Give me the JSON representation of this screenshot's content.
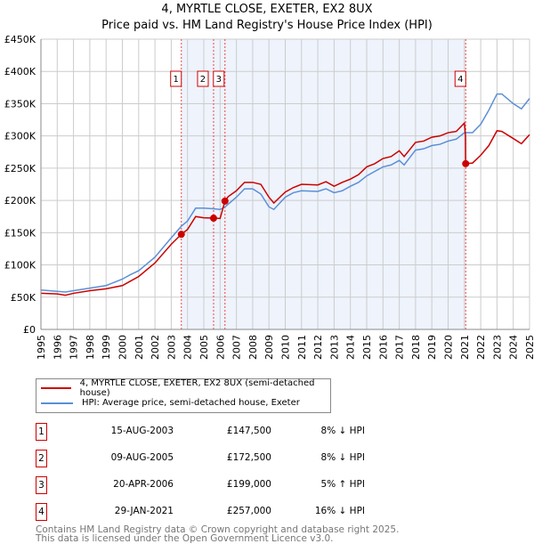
{
  "chart_data": {
    "type": "line",
    "title": "4, MYRTLE CLOSE, EXETER, EX2 8UX",
    "subtitle": "Price paid vs. HM Land Registry's House Price Index (HPI)",
    "xlim": [
      1995,
      2025
    ],
    "ylim": [
      0,
      450000
    ],
    "x_ticks": [
      "1995",
      "1996",
      "1997",
      "1998",
      "1999",
      "2000",
      "2001",
      "2002",
      "2003",
      "2004",
      "2005",
      "2006",
      "2007",
      "2008",
      "2009",
      "2010",
      "2011",
      "2012",
      "2013",
      "2014",
      "2015",
      "2016",
      "2017",
      "2018",
      "2019",
      "2020",
      "2021",
      "2022",
      "2023",
      "2024",
      "2025"
    ],
    "y_ticks": [
      "£0",
      "£50K",
      "£100K",
      "£150K",
      "£200K",
      "£250K",
      "£300K",
      "£350K",
      "£400K",
      "£450K"
    ],
    "grid": true,
    "shaded_range": [
      2003.62,
      2021.08
    ],
    "series": [
      {
        "name": "4, MYRTLE CLOSE, EXETER, EX2 8UX (semi-detached house)",
        "color": "#cc0000",
        "x": [
          1995,
          1996,
          1996.5,
          1997,
          1998,
          1999,
          2000,
          2000.5,
          2001,
          2002,
          2003,
          2003.62,
          2004,
          2004.5,
          2005,
          2005.6,
          2006,
          2006.3,
          2006.5,
          2007,
          2007.5,
          2008,
          2008.5,
          2009,
          2009.3,
          2010,
          2010.5,
          2011,
          2012,
          2012.5,
          2013,
          2013.5,
          2014,
          2014.5,
          2015,
          2015.5,
          2016,
          2016.5,
          2017,
          2017.3,
          2018,
          2018.5,
          2019,
          2019.5,
          2020,
          2020.5,
          2021,
          2021.07,
          2021.08,
          2021.5,
          2022,
          2022.5,
          2023,
          2023.3,
          2024,
          2024.5,
          2025
        ],
        "y": [
          56000,
          55000,
          53000,
          56000,
          60000,
          63000,
          68000,
          75000,
          82000,
          103000,
          132000,
          147500,
          155000,
          175000,
          173000,
          172500,
          172000,
          199000,
          206000,
          215000,
          228000,
          228000,
          225000,
          205000,
          196000,
          213000,
          220000,
          225000,
          224000,
          229000,
          222000,
          228000,
          233000,
          240000,
          252000,
          257000,
          265000,
          268000,
          277000,
          268000,
          290000,
          292000,
          298000,
          300000,
          305000,
          307000,
          320000,
          300000,
          257000,
          258000,
          270000,
          285000,
          308000,
          307000,
          296000,
          288000,
          302000
        ]
      },
      {
        "name": "HPI: Average price, semi-detached house, Exeter",
        "color": "#5b8fd6",
        "x": [
          1995,
          1996,
          1996.5,
          1997,
          1998,
          1999,
          2000,
          2000.5,
          2001,
          2002,
          2003,
          2003.62,
          2004,
          2004.5,
          2005,
          2005.6,
          2006,
          2006.3,
          2007,
          2007.5,
          2008,
          2008.5,
          2009,
          2009.3,
          2010,
          2010.5,
          2011,
          2012,
          2012.5,
          2013,
          2013.5,
          2014,
          2014.5,
          2015,
          2015.5,
          2016,
          2016.5,
          2017,
          2017.3,
          2018,
          2018.5,
          2019,
          2019.5,
          2020,
          2020.5,
          2021,
          2021.5,
          2022,
          2022.5,
          2023,
          2023.3,
          2024,
          2024.5,
          2025
        ],
        "y": [
          61000,
          59000,
          58000,
          60000,
          64000,
          68000,
          78000,
          85000,
          91000,
          112000,
          142000,
          160000,
          168000,
          188000,
          188000,
          187000,
          186000,
          190000,
          205000,
          218000,
          218000,
          210000,
          190000,
          186000,
          205000,
          212000,
          215000,
          214000,
          218000,
          212000,
          215000,
          222000,
          228000,
          238000,
          245000,
          252000,
          255000,
          262000,
          255000,
          278000,
          280000,
          285000,
          287000,
          292000,
          295000,
          305000,
          305000,
          318000,
          340000,
          365000,
          365000,
          350000,
          342000,
          358000
        ]
      }
    ],
    "sales": [
      {
        "label": "1",
        "x": 2003.62,
        "y": 147500,
        "date": "15-AUG-2003",
        "price": "£147,500",
        "hpi": "8% ↓ HPI"
      },
      {
        "label": "2",
        "x": 2005.6,
        "y": 172500,
        "date": "09-AUG-2005",
        "price": "£172,500",
        "hpi": "8% ↓ HPI"
      },
      {
        "label": "3",
        "x": 2006.3,
        "y": 199000,
        "date": "20-APR-2006",
        "price": "£199,000",
        "hpi": "5% ↑ HPI"
      },
      {
        "label": "4",
        "x": 2021.08,
        "y": 257000,
        "date": "29-JAN-2021",
        "price": "£257,000",
        "hpi": "16% ↓ HPI"
      }
    ]
  },
  "footer": {
    "line1": "Contains HM Land Registry data © Crown copyright and database right 2025.",
    "line2": "This data is licensed under the Open Government Licence v3.0."
  }
}
